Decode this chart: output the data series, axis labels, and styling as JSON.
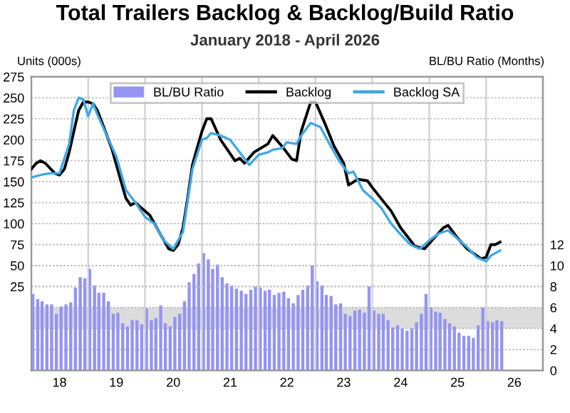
{
  "chart_data": {
    "type": "bar",
    "title": "Total Trailers Backlog & Backlog/Build Ratio",
    "subtitle": "January 2018 - April 2026",
    "ylabel": "Units (000s)",
    "y2label": "BL/BU Ratio (Months)",
    "x": [
      "2018-01",
      "2018-02",
      "2018-03",
      "2018-04",
      "2018-05",
      "2018-06",
      "2018-07",
      "2018-08",
      "2018-09",
      "2018-10",
      "2018-11",
      "2018-12",
      "2019-01",
      "2019-02",
      "2019-03",
      "2019-04",
      "2019-05",
      "2019-06",
      "2019-07",
      "2019-08",
      "2019-09",
      "2019-10",
      "2019-11",
      "2019-12",
      "2020-01",
      "2020-02",
      "2020-03",
      "2020-04",
      "2020-05",
      "2020-06",
      "2020-07",
      "2020-08",
      "2020-09",
      "2020-10",
      "2020-11",
      "2020-12",
      "2021-01",
      "2021-02",
      "2021-03",
      "2021-04",
      "2021-05",
      "2021-06",
      "2021-07",
      "2021-08",
      "2021-09",
      "2021-10",
      "2021-11",
      "2021-12",
      "2022-01",
      "2022-02",
      "2022-03",
      "2022-04",
      "2022-05",
      "2022-06",
      "2022-07",
      "2022-08",
      "2022-09",
      "2022-10",
      "2022-11",
      "2022-12",
      "2023-01",
      "2023-02",
      "2023-03",
      "2023-04",
      "2023-05",
      "2023-06",
      "2023-07",
      "2023-08",
      "2023-09",
      "2023-10",
      "2023-11",
      "2023-12",
      "2024-01",
      "2024-02",
      "2024-03",
      "2024-04",
      "2024-05",
      "2024-06",
      "2024-07",
      "2024-08",
      "2024-09",
      "2024-10",
      "2024-11",
      "2024-12",
      "2025-01",
      "2025-02",
      "2025-03",
      "2025-04",
      "2025-05",
      "2025-06",
      "2025-07",
      "2025-08",
      "2025-09",
      "2025-10",
      "2025-11",
      "2025-12",
      "2026-01",
      "2026-02",
      "2026-03",
      "2026-04"
    ],
    "series": [
      {
        "name": "BL/BU Ratio",
        "axis": "y2",
        "color": "#9494f4",
        "values": [
          7.3,
          6.8,
          6.6,
          6.3,
          6.3,
          5.4,
          6.1,
          6.3,
          6.5,
          7.9,
          8.9,
          8.8,
          9.7,
          8.1,
          7.4,
          7.4,
          6.6,
          5.4,
          5.5,
          4.5,
          4.2,
          4.8,
          4.8,
          4.4,
          5.9,
          4.8,
          5.0,
          6.2,
          4.5,
          4.2,
          5.1,
          5.4,
          6.6,
          8.4,
          9.2,
          10.2,
          11.2,
          10.6,
          9.7,
          10.1,
          8.9,
          8.3,
          8.1,
          7.8,
          7.6,
          7.3,
          7.7,
          8.0,
          7.9,
          7.6,
          7.7,
          7.2,
          7.4,
          7.5,
          6.9,
          6.4,
          7.2,
          7.7,
          8.1,
          10,
          8.5,
          8.1,
          7.2,
          7.1,
          6.3,
          6.4,
          5.4,
          5.2,
          5.7,
          5.8,
          5.5,
          8.0,
          5.7,
          5.4,
          5.4,
          4.8,
          4.1,
          4.3,
          4.0,
          3.8,
          4.0,
          4.6,
          5.4,
          7.3,
          6.0,
          5.6,
          5.5,
          4.9,
          4.5,
          4.2,
          3.6,
          3.3,
          3.3,
          3.1,
          4.3,
          6.0,
          4.7,
          4.6,
          4.8,
          4.7
        ]
      },
      {
        "name": "Backlog",
        "type": "line",
        "color": "#000000",
        "x": [
          "2018-01",
          "2018-02",
          "2018-03",
          "2018-04",
          "2018-06",
          "2018-07",
          "2018-08",
          "2018-09",
          "2018-10",
          "2018-11",
          "2018-12",
          "2019-01",
          "2019-02",
          "2019-03",
          "2019-04",
          "2019-06",
          "2019-08",
          "2019-09",
          "2019-10",
          "2019-11",
          "2019-12",
          "2020-02",
          "2020-04",
          "2020-06",
          "2020-07",
          "2020-08",
          "2020-09",
          "2020-10",
          "2020-11",
          "2020-12",
          "2021-01",
          "2021-02",
          "2021-03",
          "2021-05",
          "2021-08",
          "2021-09",
          "2021-10",
          "2021-12",
          "2022-03",
          "2022-04",
          "2022-06",
          "2022-08",
          "2022-09",
          "2022-10",
          "2022-12",
          "2023-01",
          "2023-03",
          "2023-05",
          "2023-07",
          "2023-08",
          "2023-10",
          "2023-12",
          "2024-01",
          "2024-03",
          "2024-05",
          "2024-07",
          "2024-10",
          "2024-12",
          "2025-02",
          "2025-04",
          "2025-05",
          "2025-07",
          "2025-09",
          "2025-12",
          "2026-01",
          "2026-02",
          "2026-03",
          "2026-04"
        ],
        "values": [
          165,
          172,
          175,
          172,
          160,
          158,
          165,
          185,
          210,
          235,
          245,
          245,
          243,
          235,
          220,
          190,
          150,
          130,
          122,
          125,
          120,
          110,
          90,
          70,
          68,
          75,
          95,
          130,
          170,
          190,
          210,
          225,
          225,
          200,
          175,
          178,
          172,
          185,
          195,
          205,
          192,
          177,
          175,
          210,
          245,
          245,
          220,
          192,
          172,
          146,
          153,
          151,
          143,
          129,
          115,
          95,
          73,
          70,
          83,
          95,
          98,
          83,
          70,
          58,
          60,
          75,
          75,
          78
        ]
      },
      {
        "name": "Backlog SA",
        "type": "line",
        "color": "#3ea8e6",
        "x": [
          "2018-01",
          "2018-03",
          "2018-05",
          "2018-07",
          "2018-09",
          "2018-10",
          "2018-11",
          "2018-12",
          "2019-01",
          "2019-02",
          "2019-03",
          "2019-05",
          "2019-07",
          "2019-09",
          "2019-11",
          "2020-01",
          "2020-03",
          "2020-05",
          "2020-07",
          "2020-09",
          "2020-11",
          "2021-01",
          "2021-02",
          "2021-03",
          "2021-05",
          "2021-07",
          "2021-09",
          "2021-11",
          "2022-01",
          "2022-03",
          "2022-04",
          "2022-06",
          "2022-07",
          "2022-09",
          "2022-10",
          "2022-12",
          "2023-02",
          "2023-04",
          "2023-06",
          "2023-08",
          "2023-09",
          "2023-11",
          "2024-01",
          "2024-03",
          "2024-05",
          "2024-07",
          "2024-09",
          "2024-11",
          "2025-01",
          "2025-03",
          "2025-05",
          "2025-07",
          "2025-09",
          "2025-11",
          "2026-01",
          "2026-02",
          "2026-04"
        ],
        "values": [
          155,
          158,
          160,
          160,
          195,
          235,
          250,
          248,
          228,
          243,
          230,
          205,
          180,
          140,
          125,
          108,
          100,
          80,
          70,
          90,
          165,
          200,
          202,
          208,
          205,
          200,
          185,
          170,
          182,
          185,
          188,
          190,
          197,
          195,
          205,
          220,
          215,
          195,
          175,
          160,
          162,
          140,
          130,
          118,
          100,
          87,
          75,
          70,
          80,
          88,
          92,
          82,
          72,
          60,
          55,
          62,
          68
        ]
      }
    ],
    "xlim": [
      "2018-01",
      "2027-01"
    ],
    "xticks": [
      {
        "value": "2018-01",
        "label": null
      },
      {
        "value": "2018-07",
        "label": "18"
      },
      {
        "value": "2019-01",
        "label": null
      },
      {
        "value": "2019-07",
        "label": "19"
      },
      {
        "value": "2020-01",
        "label": null
      },
      {
        "value": "2020-07",
        "label": "20"
      },
      {
        "value": "2021-01",
        "label": null
      },
      {
        "value": "2021-07",
        "label": "21"
      },
      {
        "value": "2022-01",
        "label": null
      },
      {
        "value": "2022-07",
        "label": "22"
      },
      {
        "value": "2023-01",
        "label": null
      },
      {
        "value": "2023-07",
        "label": "23"
      },
      {
        "value": "2024-01",
        "label": null
      },
      {
        "value": "2024-07",
        "label": "24"
      },
      {
        "value": "2025-01",
        "label": null
      },
      {
        "value": "2025-07",
        "label": "25"
      },
      {
        "value": "2026-01",
        "label": null
      },
      {
        "value": "2026-07",
        "label": "26"
      },
      {
        "value": "2027-01",
        "label": null
      }
    ],
    "ylim": [
      -75,
      275
    ],
    "yticks": [
      25,
      50,
      75,
      100,
      125,
      150,
      175,
      200,
      225,
      250,
      275
    ],
    "y2lim": [
      0,
      28
    ],
    "y2ticks": [
      0,
      2,
      4,
      6,
      8,
      10,
      12
    ],
    "bands": [
      {
        "axis": "y2",
        "from": 4,
        "to": 6,
        "color": "#dcdcdc"
      }
    ],
    "grid": true,
    "legend": "top"
  }
}
